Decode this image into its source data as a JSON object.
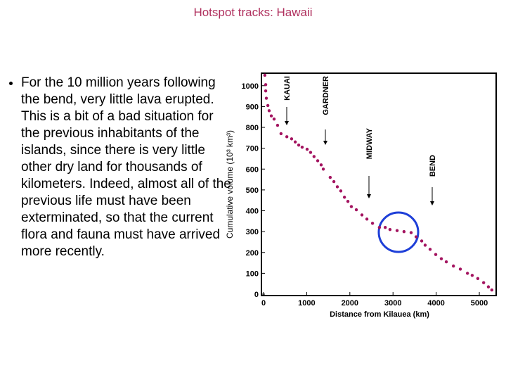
{
  "title": "Hotspot tracks: Hawaii",
  "bullet": "For the 10 million years following the bend, very little lava erupted. This is a bit of a bad situation for the previous inhabitants of the islands, since there is very little other dry land for thousands of kilometers. Indeed, almost all of the previous life must have been exterminated, so that the current flora and fauna must have arrived more recently.",
  "chart_data": {
    "type": "scatter",
    "x_label": "Distance from Kilauea (km)",
    "y_label": "Cumulative volume (10³ km³)",
    "annotations": [
      "KAUAI",
      "GARDNER",
      "MIDWAY",
      "BEND"
    ],
    "color": "#a3135f",
    "x": [
      30,
      50,
      50,
      65,
      100,
      130,
      180,
      245,
      325,
      405,
      540,
      650,
      735,
      815,
      895,
      1010,
      1090,
      1170,
      1255,
      1335,
      1385,
      1545,
      1630,
      1710,
      1790,
      1875,
      1955,
      2035,
      2150,
      2280,
      2395,
      2525,
      2685,
      2820,
      2930,
      3095,
      3255,
      3420,
      3535,
      3665,
      3745,
      3860,
      3990,
      4120,
      4235,
      4400,
      4560,
      4725,
      4835,
      4965,
      5100,
      5210,
      5290
    ],
    "values": [
      1050,
      1005,
      975,
      940,
      905,
      880,
      855,
      840,
      810,
      770,
      755,
      745,
      730,
      715,
      705,
      695,
      680,
      660,
      640,
      620,
      600,
      560,
      540,
      515,
      495,
      465,
      445,
      420,
      405,
      380,
      360,
      340,
      320,
      320,
      310,
      305,
      300,
      295,
      275,
      255,
      235,
      215,
      190,
      170,
      155,
      135,
      120,
      100,
      90,
      75,
      55,
      35,
      20
    ],
    "xlim": [
      0,
      5400
    ],
    "ylim": [
      0,
      1060
    ],
    "xticks": [
      0,
      1000,
      2000,
      3000,
      4000,
      5000
    ],
    "yticks": [
      0,
      100,
      200,
      300,
      400,
      500,
      600,
      700,
      800,
      900,
      1000
    ]
  }
}
